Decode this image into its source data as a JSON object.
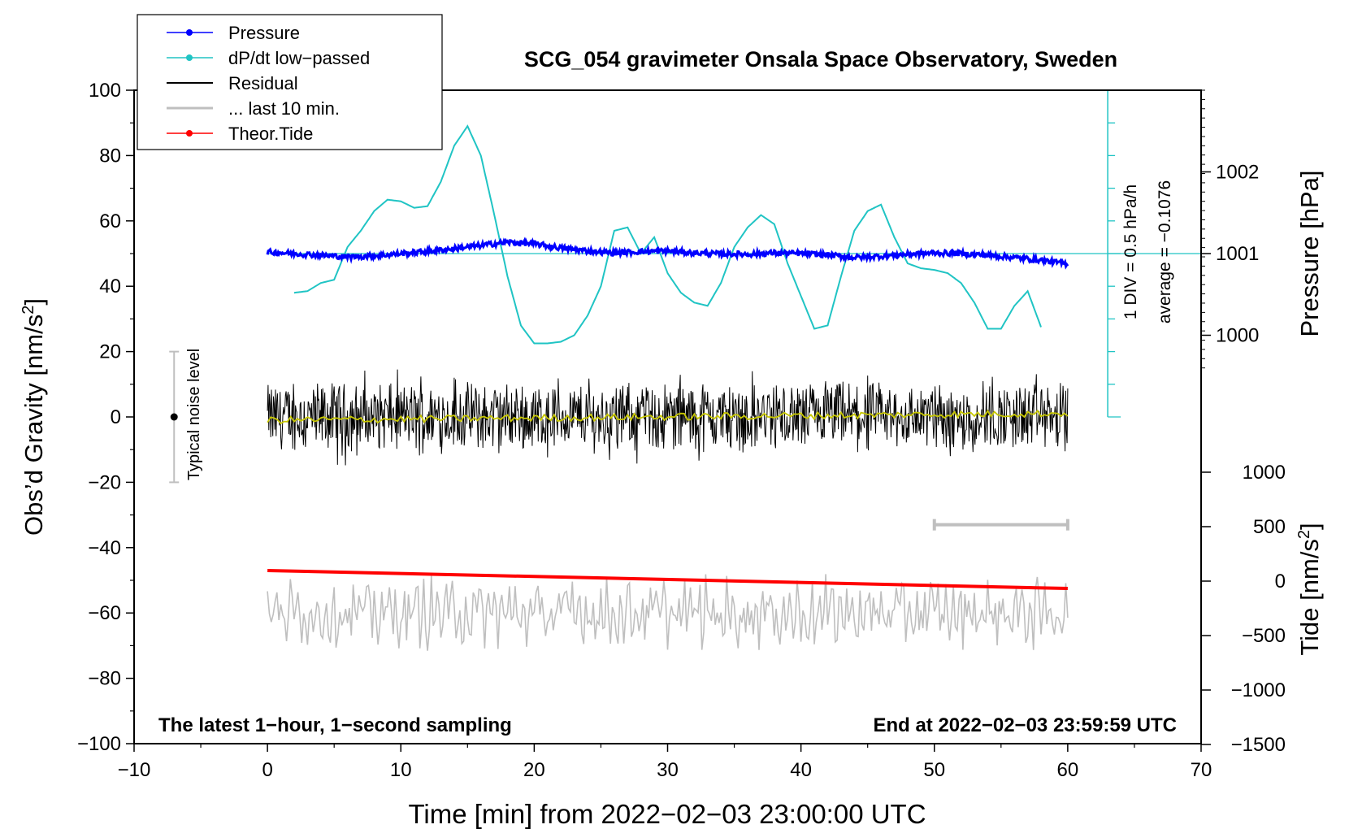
{
  "chart_data": {
    "type": "line",
    "title": "SCG_054 gravimeter Onsala Space Observatory, Sweden",
    "xlabel": "Time [min] from 2022−02−03 23:00:00 UTC",
    "ylabel_left_main": "Obs’d Gravity [nm/s",
    "ylabel_left_sup": "2",
    "ylabel_left_end": "]",
    "ylabel_right_pressure": "Pressure [hPa]",
    "ylabel_right_tide_main": "Tide [nm/s",
    "ylabel_right_tide_sup": "2",
    "ylabel_right_tide_end": "]",
    "xlim": [
      -10,
      70
    ],
    "ylim": [
      -100,
      100
    ],
    "x_ticks": [
      "−10",
      "0",
      "10",
      "20",
      "30",
      "40",
      "50",
      "60",
      "70"
    ],
    "y_ticks": [
      "−100",
      "−80",
      "−60",
      "−40",
      "−20",
      "0",
      "20",
      "40",
      "60",
      "80",
      "100"
    ],
    "pressure_ticks": [
      "1002",
      "1001",
      "1000"
    ],
    "tide_ticks": [
      "1000",
      "500",
      "0",
      "−500",
      "−1000",
      "−1500"
    ],
    "legend": {
      "position": "top-left",
      "entries": [
        "Pressure",
        "dP/dt low−passed",
        "Residual",
        "... last 10 min.",
        "Theor.Tide"
      ]
    },
    "annotations": {
      "bottom_left": "The latest 1−hour, 1−second sampling",
      "bottom_right": "End at 2022−02−03 23:59:59 UTC",
      "noise_label": "Typical noise level",
      "div_label": "1 DIV = 0.5 hPa/h",
      "average_label": "average = −0.1076"
    },
    "noise_bar": {
      "x": -7,
      "center": 0,
      "half_range": 20
    },
    "last10_bar": {
      "x_start": 50,
      "x_end": 60,
      "y": -33
    },
    "colors": {
      "pressure": "#0000ff",
      "dpdt": "#20c4c4",
      "residual": "#000000",
      "residual_smooth": "#c8c800",
      "last10": "#bfbfbf",
      "tide": "#ff0000"
    },
    "series": [
      {
        "name": "Pressure",
        "x": [
          0,
          2,
          4,
          6,
          8,
          10,
          12,
          14,
          16,
          18,
          20,
          22,
          24,
          26,
          28,
          30,
          32,
          34,
          36,
          38,
          40,
          42,
          44,
          46,
          48,
          50,
          52,
          54,
          56,
          58,
          60
        ],
        "values": [
          50.5,
          50.0,
          49.5,
          49.0,
          49.3,
          50.0,
          50.7,
          51.5,
          52.5,
          53.5,
          53.0,
          51.7,
          50.8,
          50.2,
          50.6,
          50.8,
          50.2,
          49.9,
          49.8,
          50.2,
          50.0,
          49.6,
          48.8,
          49.2,
          49.8,
          50.2,
          50.0,
          49.5,
          48.8,
          48.0,
          46.8
        ]
      },
      {
        "name": "dP/dt low−passed",
        "x": [
          2,
          3,
          4,
          5,
          6,
          7,
          8,
          9,
          10,
          11,
          12,
          13,
          14,
          15,
          16,
          17,
          18,
          19,
          20,
          21,
          22,
          23,
          24,
          25,
          26,
          27,
          28,
          29,
          30,
          31,
          32,
          33,
          34,
          35,
          36,
          37,
          38,
          39,
          40,
          41,
          42,
          43,
          44,
          45,
          46,
          47,
          48,
          49,
          50,
          51,
          52,
          53,
          54,
          55,
          56,
          57,
          58
        ],
        "values": [
          38,
          38.5,
          41,
          42,
          52,
          57,
          63,
          66.5,
          66,
          64,
          64.5,
          72,
          83,
          89,
          80,
          62,
          43,
          28,
          22.5,
          22.5,
          23,
          25,
          31,
          40,
          57,
          58,
          50,
          55,
          44,
          38,
          35,
          34,
          41,
          52,
          58,
          61.8,
          59,
          47,
          37,
          27,
          28,
          43,
          57,
          63,
          65,
          55,
          47,
          45.5,
          45,
          44,
          41,
          35,
          27,
          27,
          34,
          38.5,
          27.5
        ]
      },
      {
        "name": "Residual",
        "x_start": 0,
        "x_end": 60,
        "note": "1-second sampled residual, approx. ±10 nm/s² scatter around 0"
      },
      {
        "name": "... last 10 min.",
        "x_start": 0,
        "x_end": 60,
        "note": "residual trace, shown around −60 nm/s² (gray)"
      },
      {
        "name": "Theor.Tide",
        "x": [
          0,
          60
        ],
        "values": [
          -47,
          -52.5
        ]
      }
    ]
  }
}
